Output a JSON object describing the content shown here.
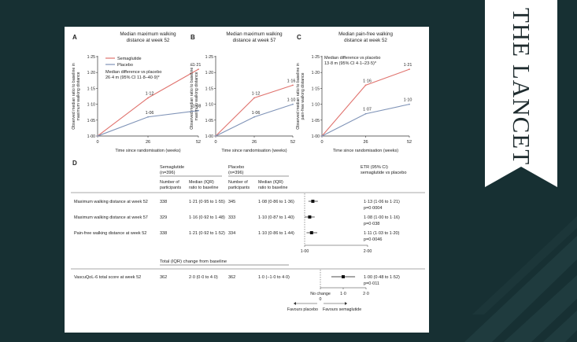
{
  "brand": {
    "name": "THE LANCET"
  },
  "colors": {
    "background": "#173033",
    "semaglutide": "#e0736e",
    "placebo": "#7f93b7",
    "bookmark": "#ffffff"
  },
  "chart_data": [
    {
      "type": "line",
      "panel": "A",
      "title": "Median maximum walking distance at week 52",
      "xlabel": "Time since randomisation (weeks)",
      "ylabel": "Observed median ratio to baseline in maximum walking distance",
      "x": [
        0,
        26,
        52
      ],
      "xticks": [
        "0",
        "26",
        "52"
      ],
      "ylim": [
        1.0,
        1.25
      ],
      "yticks": [
        "1·00",
        "1·05",
        "1·10",
        "1·15",
        "1·20",
        "1·25"
      ],
      "annotation": "Median difference vs placebo 26·4 m (95% CI 11·8–40·9)*",
      "series": [
        {
          "name": "Semaglutide",
          "values": [
            1.0,
            1.12,
            1.21
          ],
          "labels": [
            "",
            "1·12",
            "1·21"
          ]
        },
        {
          "name": "Placebo",
          "values": [
            1.0,
            1.06,
            1.08
          ],
          "labels": [
            "",
            "1·06",
            "1·08"
          ]
        }
      ]
    },
    {
      "type": "line",
      "panel": "B",
      "title": "Median maximum walking distance at week 57",
      "xlabel": "Time since randomisation (weeks)",
      "ylabel": "Observed median ratio to baseline in maximum walking distance",
      "x": [
        0,
        26,
        52
      ],
      "xticks": [
        "0",
        "26",
        "52"
      ],
      "ylim": [
        1.0,
        1.25
      ],
      "yticks": [
        "1·00",
        "1·05",
        "1·10",
        "1·15",
        "1·20",
        "1·25"
      ],
      "series": [
        {
          "name": "Semaglutide",
          "values": [
            1.0,
            1.12,
            1.16
          ],
          "labels": [
            "",
            "1·12",
            "1·16"
          ]
        },
        {
          "name": "Placebo",
          "values": [
            1.0,
            1.06,
            1.1
          ],
          "labels": [
            "",
            "1·06",
            "1·10"
          ]
        }
      ]
    },
    {
      "type": "line",
      "panel": "C",
      "title": "Median pain-free walking distance at week 52",
      "xlabel": "Time since randomisation (weeks)",
      "ylabel": "Observed median ratio to baseline in pain-free walking distance",
      "x": [
        0,
        26,
        52
      ],
      "xticks": [
        "0",
        "26",
        "52"
      ],
      "ylim": [
        1.0,
        1.25
      ],
      "yticks": [
        "1·00",
        "1·05",
        "1·10",
        "1·15",
        "1·20",
        "1·25"
      ],
      "annotation": "Median difference vs placebo 13·8 m (95% CI 4·1–23·5)*",
      "series": [
        {
          "name": "Semaglutide",
          "values": [
            1.0,
            1.16,
            1.21
          ],
          "labels": [
            "",
            "1·16",
            "1·21"
          ]
        },
        {
          "name": "Placebo",
          "values": [
            1.0,
            1.07,
            1.1
          ],
          "labels": [
            "",
            "1·07",
            "1·10"
          ]
        }
      ]
    },
    {
      "type": "table",
      "panel": "D",
      "headers": {
        "sema_group": "Semaglutide (n=396)",
        "plac_group": "Placebo (n=396)",
        "n_col": "Number of participants",
        "ratio_col": "Median (IQR) ratio to baseline",
        "ratio_col_plac": "Median (IQR) ratio to baseline",
        "etr": "ETR (95% CI) semaglutide vs placebo"
      },
      "rows": [
        {
          "label": "Maximum walking distance at week 52",
          "sema_n": "338",
          "sema_med": "1·21 (0·95 to 1·55)",
          "plac_n": "345",
          "plac_med": "1·08 (0·86 to 1·36)",
          "etr": "1·13 (1·06 to 1·21)",
          "p": "p=0·0004",
          "est": 1.13,
          "lo": 1.06,
          "hi": 1.21
        },
        {
          "label": "Maximum walking distance at week 57",
          "sema_n": "329",
          "sema_med": "1·16 (0·92 to 1·48)",
          "plac_n": "333",
          "plac_med": "1·10 (0·87 to 1·40)",
          "etr": "1·08 (1·00 to 1·16)",
          "p": "p=0·038",
          "est": 1.08,
          "lo": 1.0,
          "hi": 1.16
        },
        {
          "label": "Pain-free walking distance at week 52",
          "sema_n": "338",
          "sema_med": "1·21 (0·92 to 1·52)",
          "plac_n": "334",
          "plac_med": "1·10 (0·86 to 1·44)",
          "etr": "1·11 (1·03 to 1·20)",
          "p": "p=0·0046",
          "est": 1.11,
          "lo": 1.03,
          "hi": 1.2
        }
      ],
      "axis1": {
        "min": 1.0,
        "max": 2.0,
        "ticks": [
          "1·00",
          "2·00"
        ]
      },
      "section2": "Total (IQR) change from baseline",
      "rows2": [
        {
          "label": "VascuQoL-6 total score at week 52",
          "sema_n": "362",
          "sema_med": "2·0 (0·0 to 4·0)",
          "plac_n": "362",
          "plac_med": "1·0 (−1·0 to 4·0)",
          "etr": "1·00 (0·48 to 1·52)",
          "p": "p=0·011",
          "est": 1.0,
          "lo": 0.48,
          "hi": 1.52
        }
      ],
      "axis2": {
        "min": -1.0,
        "max": 2.0,
        "ticks": [
          "0",
          "1·0",
          "2·0"
        ],
        "no_change": "No change"
      },
      "favours_left": "Favours placebo",
      "favours_right": "Favours semaglutide"
    }
  ]
}
